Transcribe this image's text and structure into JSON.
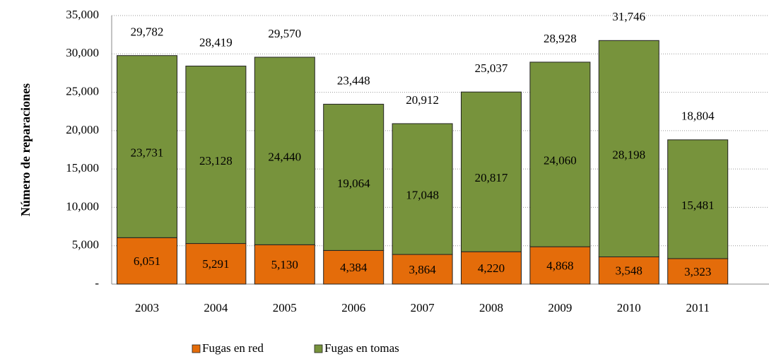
{
  "chart_data": {
    "type": "stacked_bar",
    "y_label": "Número de reparaciones",
    "categories": [
      "2003",
      "2004",
      "2005",
      "2006",
      "2007",
      "2008",
      "2009",
      "2010",
      "2011"
    ],
    "series": [
      {
        "name": "Fugas en red",
        "color": "#e46c0a",
        "values": [
          6051,
          5291,
          5130,
          4384,
          3864,
          4220,
          4868,
          3548,
          3323
        ],
        "value_labels": [
          "6,051",
          "5,291",
          "5,130",
          "4,384",
          "3,864",
          "4,220",
          "4,868",
          "3,548",
          "3,323"
        ]
      },
      {
        "name": "Fugas en tomas",
        "color": "#77933c",
        "values": [
          23731,
          23128,
          24440,
          19064,
          17048,
          20817,
          24060,
          28198,
          15481
        ],
        "value_labels": [
          "23,731",
          "23,128",
          "24,440",
          "19,064",
          "17,048",
          "20,817",
          "24,060",
          "28,198",
          "15,481"
        ]
      }
    ],
    "totals": {
      "values": [
        29782,
        28419,
        29570,
        23448,
        20912,
        25037,
        28928,
        31746,
        18804
      ],
      "value_labels": [
        "29,782",
        "28,419",
        "29,570",
        "23,448",
        "20,912",
        "25,037",
        "28,928",
        "31,746",
        "18,804"
      ]
    },
    "ylim": [
      0,
      35000
    ],
    "yticks": [
      {
        "value": 0,
        "label": "-"
      },
      {
        "value": 5000,
        "label": "5,000"
      },
      {
        "value": 10000,
        "label": "10,000"
      },
      {
        "value": 15000,
        "label": "15,000"
      },
      {
        "value": 20000,
        "label": "20,000"
      },
      {
        "value": 25000,
        "label": "25,000"
      },
      {
        "value": 30000,
        "label": "30,000"
      },
      {
        "value": 35000,
        "label": "35,000"
      }
    ],
    "grid": true,
    "legend": "bottom"
  }
}
